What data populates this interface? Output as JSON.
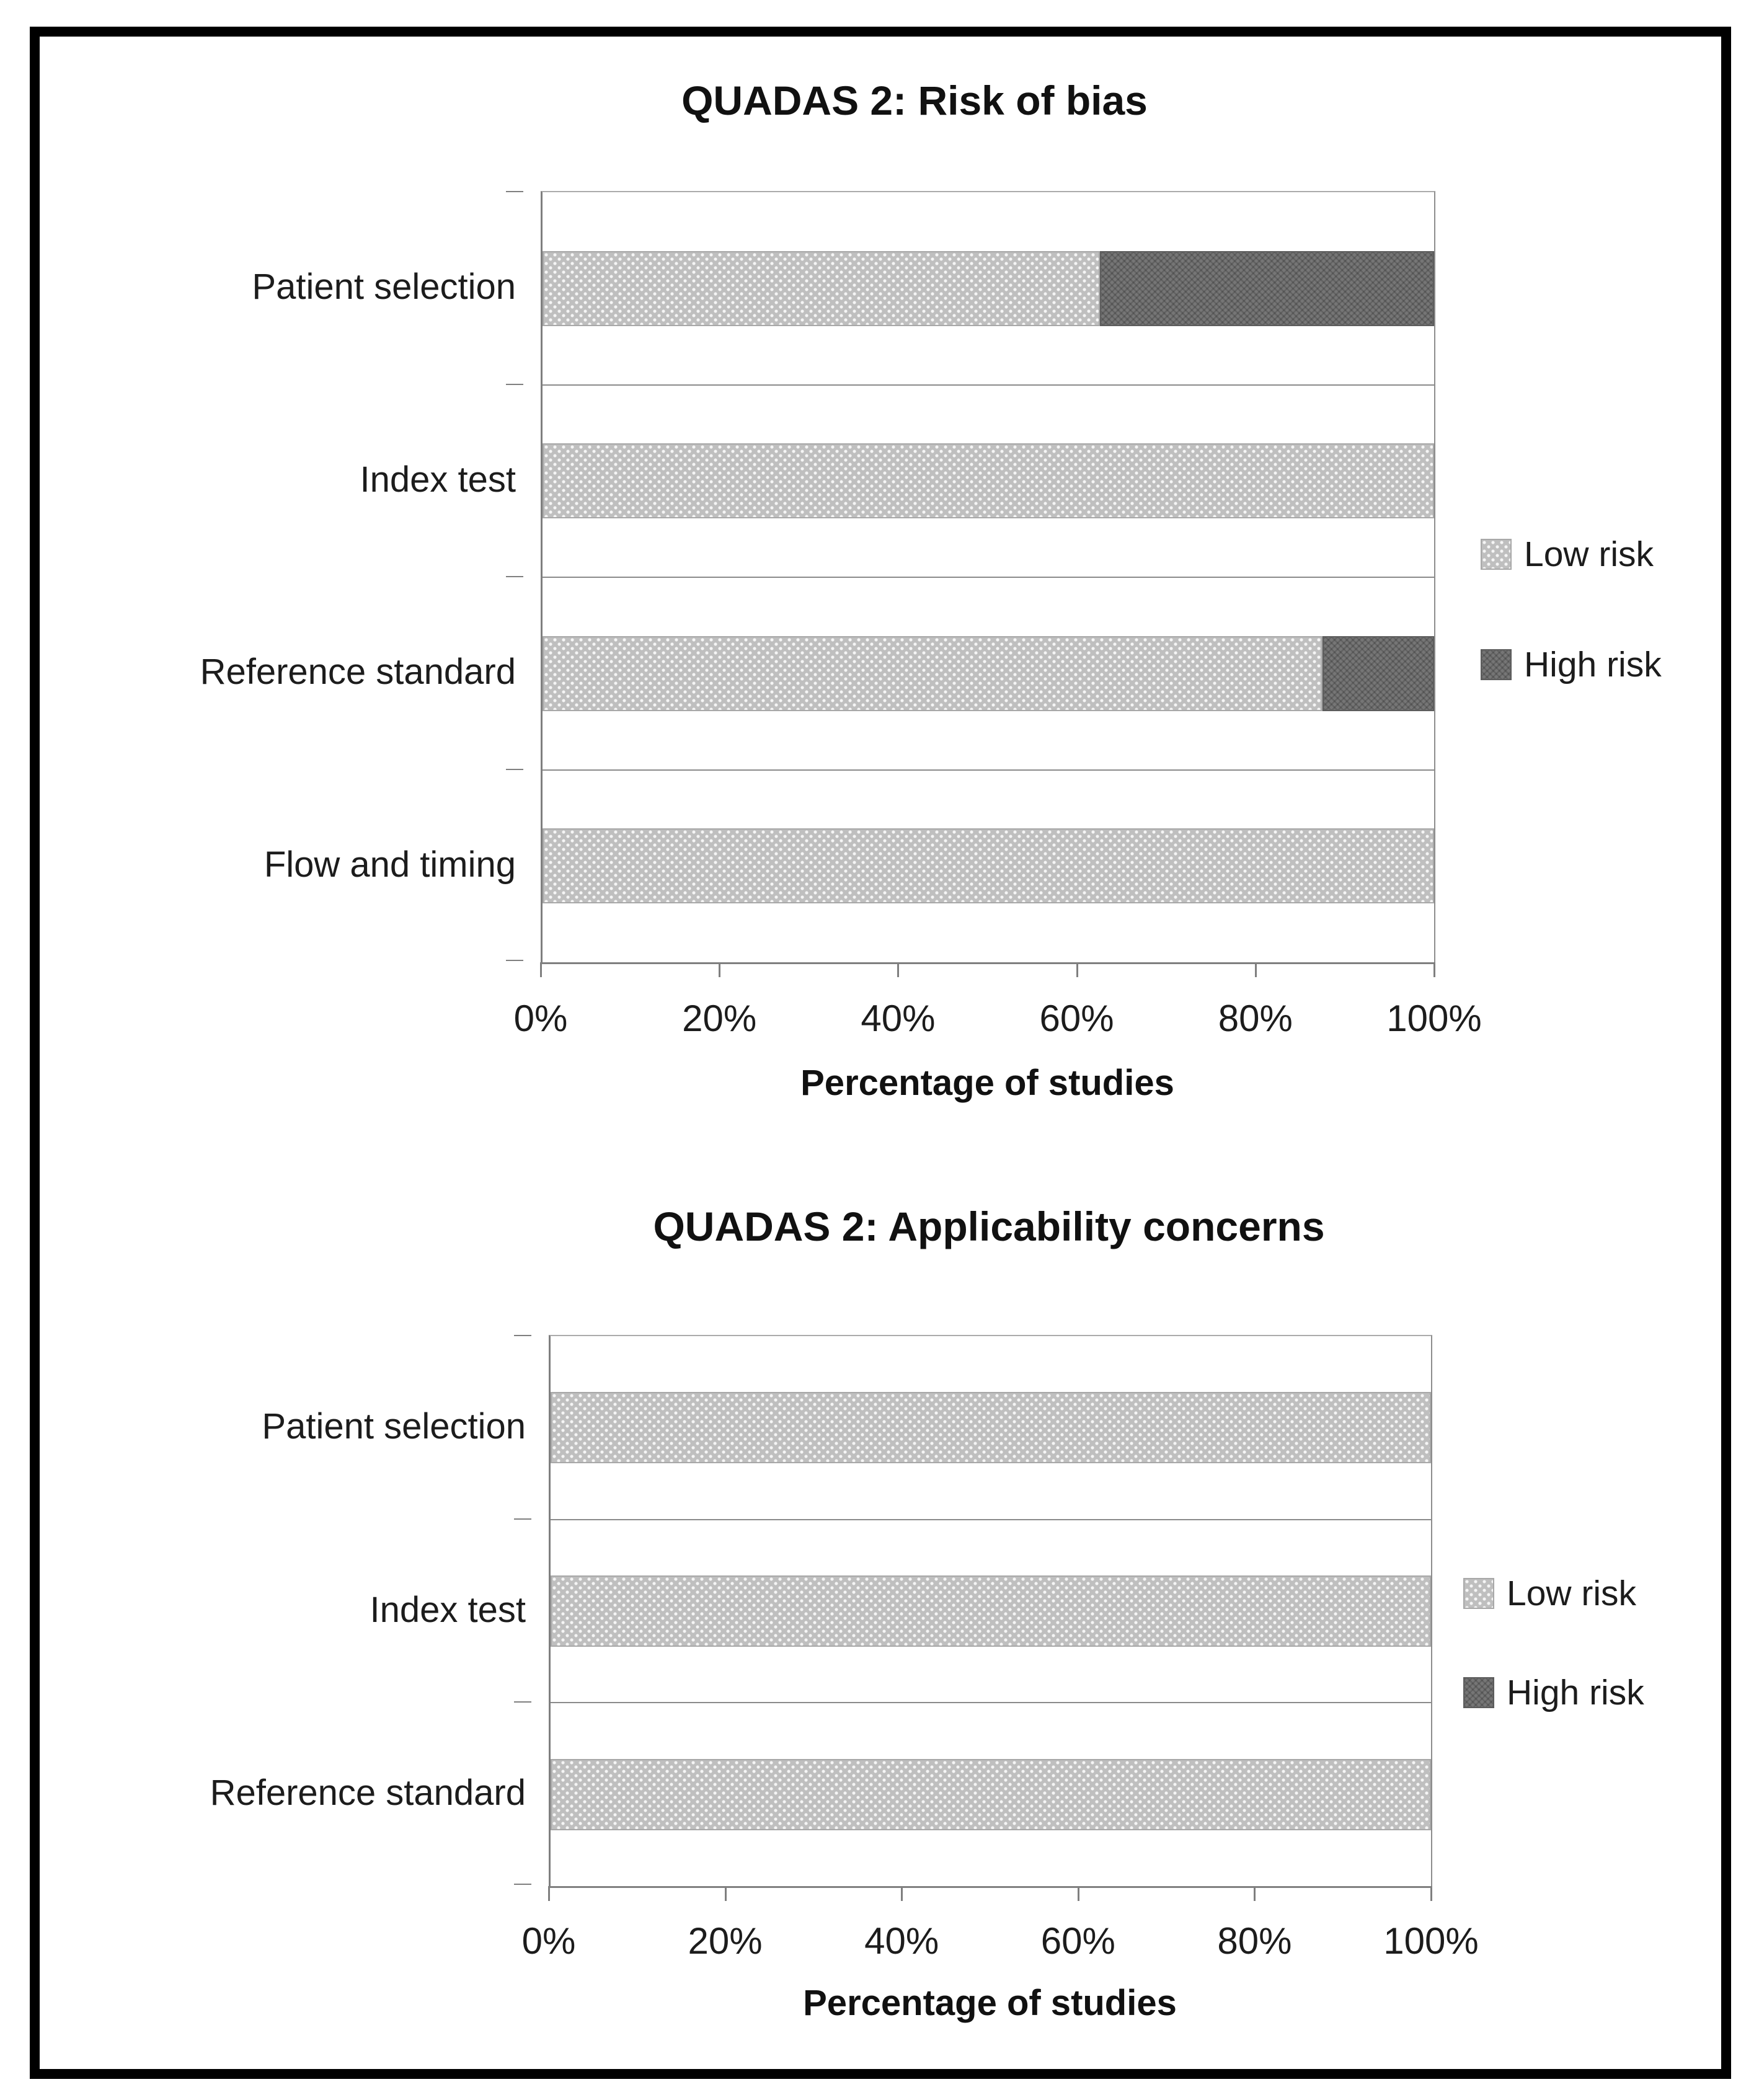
{
  "figure": {
    "kind": "QUADAS 2 quality assessment summary figure",
    "background": "#ffffff",
    "frame_color": "#000000",
    "axis_color": "#7f7f7f",
    "colors": {
      "low_risk": "#bfbfbf",
      "high_risk": "#767676"
    }
  },
  "chart_data": [
    {
      "type": "bar",
      "orientation": "horizontal",
      "stacked": true,
      "title": "QUADAS 2: Risk of bias",
      "categories": [
        "Patient selection",
        "Index test",
        "Reference standard",
        "Flow and timing"
      ],
      "series": [
        {
          "name": "Low risk",
          "key": "low",
          "values": [
            62.5,
            100,
            87.5,
            100
          ]
        },
        {
          "name": "High risk",
          "key": "high",
          "values": [
            37.5,
            0,
            12.5,
            0
          ]
        }
      ],
      "xlabel": "Percentage of studies",
      "xticks": [
        "0%",
        "20%",
        "40%",
        "60%",
        "80%",
        "100%"
      ],
      "xlim": [
        0,
        100
      ],
      "grid": "category-separator-lines",
      "legend_position": "right"
    },
    {
      "type": "bar",
      "orientation": "horizontal",
      "stacked": true,
      "title": "QUADAS 2: Applicability concerns",
      "categories": [
        "Patient selection",
        "Index test",
        "Reference standard"
      ],
      "series": [
        {
          "name": "Low risk",
          "key": "low",
          "values": [
            100,
            100,
            100
          ]
        },
        {
          "name": "High risk",
          "key": "high",
          "values": [
            0,
            0,
            0
          ]
        }
      ],
      "xlabel": "Percentage of studies",
      "xticks": [
        "0%",
        "20%",
        "40%",
        "60%",
        "80%",
        "100%"
      ],
      "xlim": [
        0,
        100
      ],
      "grid": "category-separator-lines",
      "legend_position": "right"
    }
  ]
}
